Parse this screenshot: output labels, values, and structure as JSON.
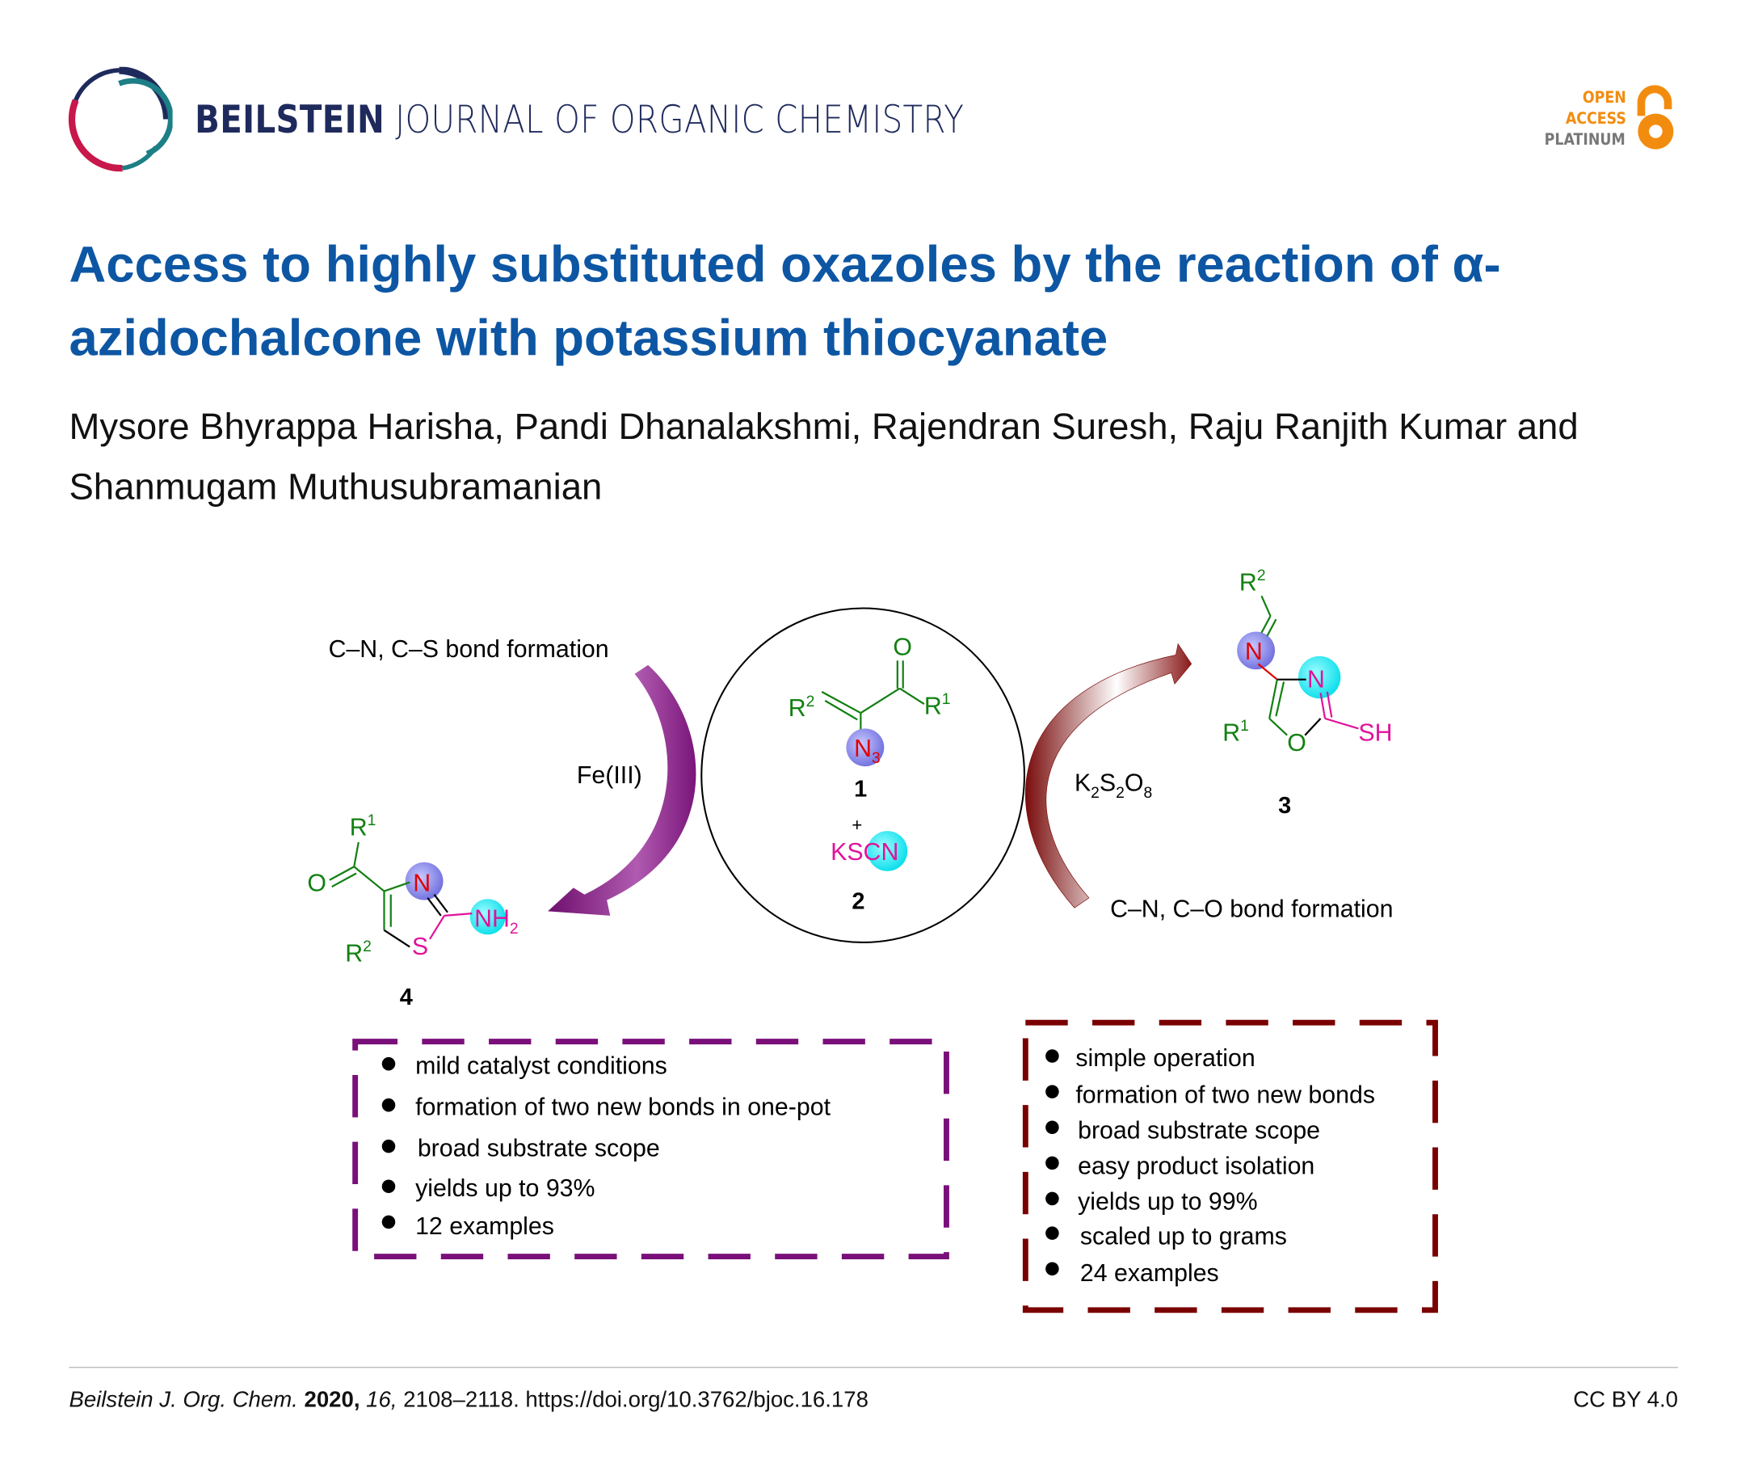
{
  "header": {
    "journal_bold": "BEILSTEIN",
    "journal_rest": " JOURNAL OF ORGANIC CHEMISTRY",
    "open_access": [
      "OPEN",
      "ACCESS",
      "PLATINUM"
    ],
    "logo_icon": "beilstein-ring-logo",
    "lock_icon": "open-access-lock-icon"
  },
  "article": {
    "title": "Access to highly substituted oxazoles by the reaction of α-azidochalcone with potassium thiocyanate",
    "authors": "Mysore Bhyrappa Harisha, Pandi Dhanalakshmi, Rajendran Suresh, Raju Ranjith Kumar and Shanmugam Muthusubramanian"
  },
  "scheme": {
    "left_bond_label": "C–N, C–S bond formation",
    "right_bond_label": "C–N, C–O bond formation",
    "left_reagent": "Fe(III)",
    "right_reagent": {
      "k": "K",
      "s1": "2",
      "s": "S",
      "s2": "2",
      "o": "O",
      "s3": "8"
    },
    "compound1": {
      "number": "1",
      "O": "O",
      "R": "R",
      "R1sup": "1",
      "R2sup": "2",
      "N": "N",
      "Nsub": "3"
    },
    "compound2": {
      "number": "2",
      "plus": "+",
      "label": "KSCN"
    },
    "compound3": {
      "number": "3",
      "R": "R",
      "R1sup": "1",
      "R2sup": "2",
      "N": "N",
      "O": "O",
      "SH": "SH"
    },
    "compound4": {
      "number": "4",
      "R": "R",
      "R1sup": "1",
      "R2sup": "2",
      "N": "N",
      "O": "O",
      "S": "S",
      "NH": "NH",
      "NHsub": "2"
    },
    "left_box": [
      "mild catalyst conditions",
      "formation of two new bonds in one-pot",
      "broad substrate scope",
      "yields up to 93%",
      "12 examples"
    ],
    "right_box": [
      "simple operation",
      "formation of two new bonds",
      "broad substrate scope",
      "easy product isolation",
      "yields up to 99%",
      "scaled up to grams",
      "24 examples"
    ],
    "colors": {
      "green": "#118011",
      "red": "#e00000",
      "magenta": "#e0139b",
      "purple_arrow": "#8a1a8a",
      "brown_arrow": "#7a0c0c",
      "left_box": "#7a0f7a",
      "right_box": "#7a0000"
    }
  },
  "footer": {
    "journal_abbr": "Beilstein J. Org. Chem.",
    "year": "2020,",
    "volume": "16,",
    "pages_doi": "2108–2118. https://doi.org/10.3762/bjoc.16.178",
    "license": "CC BY 4.0"
  }
}
